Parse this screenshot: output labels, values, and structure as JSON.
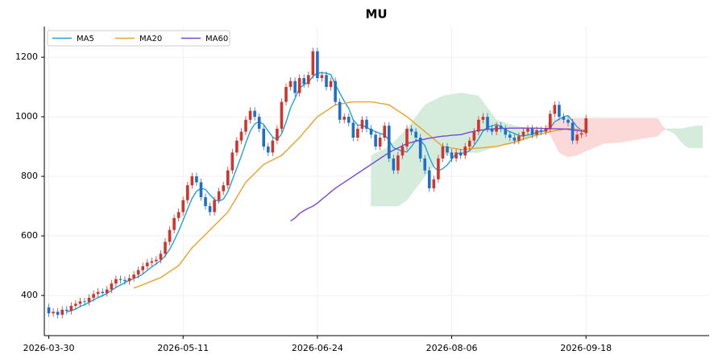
{
  "chart_data": {
    "type": "candlestick",
    "title": "MU",
    "xlim": [
      -1,
      147.5
    ],
    "xticks": [
      {
        "value": 0,
        "label": "2026-03-30"
      },
      {
        "value": 30,
        "label": "2026-05-11"
      },
      {
        "value": 60,
        "label": "2026-06-24"
      },
      {
        "value": 90,
        "label": "2026-08-06"
      },
      {
        "value": 120,
        "label": "2026-09-18"
      }
    ],
    "ylim": [
      265,
      1303
    ],
    "yticks": [
      400,
      600,
      800,
      1000,
      1200
    ],
    "grid": true,
    "legend": "upper left",
    "up_color": "#d0342c",
    "down_color": "#1f6fc8",
    "open": [
      360,
      340,
      345,
      335,
      352,
      348,
      365,
      372,
      380,
      378,
      392,
      405,
      412,
      408,
      420,
      440,
      455,
      452,
      448,
      458,
      470,
      485,
      498,
      510,
      515,
      520,
      540,
      580,
      620,
      660,
      680,
      720,
      770,
      800,
      780,
      730,
      700,
      680,
      720,
      750,
      770,
      820,
      880,
      920,
      950,
      990,
      1020,
      1000,
      960,
      900,
      880,
      920,
      960,
      1050,
      1100,
      1120,
      1080,
      1130,
      1110,
      1140,
      1220,
      1130,
      1140,
      1100,
      1120,
      1050,
      990,
      1000,
      980,
      930,
      960,
      990,
      960,
      940,
      900,
      930,
      970,
      860,
      820,
      870,
      900,
      960,
      950,
      930,
      860,
      820,
      760,
      790,
      860,
      900,
      880,
      860,
      880,
      870,
      900,
      920,
      950,
      990,
      1000,
      960,
      950,
      970,
      960,
      940,
      930,
      920,
      935,
      950,
      960,
      940,
      955,
      950,
      960,
      1010,
      1040,
      1000,
      990,
      980,
      920,
      940,
      945
    ],
    "high": [
      372,
      357,
      357,
      364,
      364,
      377,
      384,
      392,
      392,
      404,
      417,
      424,
      424,
      432,
      452,
      467,
      467,
      464,
      470,
      482,
      497,
      510,
      522,
      527,
      532,
      552,
      592,
      632,
      672,
      692,
      732,
      782,
      812,
      812,
      792,
      742,
      712,
      732,
      762,
      782,
      832,
      892,
      932,
      962,
      1002,
      1032,
      1032,
      1012,
      972,
      912,
      932,
      972,
      1062,
      1112,
      1132,
      1132,
      1142,
      1142,
      1152,
      1232,
      1232,
      1152,
      1152,
      1132,
      1132,
      1062,
      1012,
      1012,
      992,
      972,
      1002,
      1002,
      972,
      952,
      942,
      982,
      982,
      872,
      882,
      912,
      972,
      972,
      962,
      942,
      872,
      832,
      802,
      872,
      912,
      912,
      892,
      892,
      892,
      912,
      932,
      962,
      1002,
      1012,
      1012,
      972,
      982,
      982,
      972,
      952,
      942,
      947,
      962,
      972,
      972,
      967,
      967,
      972,
      1022,
      1052,
      1052,
      1012,
      1002,
      992,
      952,
      957,
      1007
    ],
    "low": [
      328,
      328,
      323,
      323,
      336,
      336,
      353,
      360,
      366,
      366,
      380,
      393,
      396,
      396,
      408,
      428,
      440,
      436,
      436,
      446,
      458,
      473,
      486,
      498,
      503,
      508,
      528,
      568,
      608,
      648,
      668,
      708,
      758,
      768,
      718,
      688,
      668,
      668,
      708,
      738,
      758,
      808,
      868,
      908,
      938,
      978,
      988,
      948,
      888,
      868,
      868,
      908,
      948,
      1038,
      1088,
      1068,
      1068,
      1098,
      1098,
      1128,
      1118,
      1118,
      1088,
      1088,
      1038,
      978,
      978,
      968,
      918,
      918,
      948,
      948,
      928,
      888,
      888,
      918,
      848,
      808,
      808,
      858,
      888,
      938,
      918,
      848,
      808,
      748,
      748,
      778,
      848,
      868,
      848,
      848,
      858,
      858,
      888,
      908,
      938,
      978,
      948,
      938,
      938,
      948,
      928,
      918,
      908,
      908,
      923,
      938,
      928,
      928,
      938,
      938,
      948,
      998,
      988,
      978,
      968,
      908,
      908,
      928,
      933
    ],
    "close": [
      340,
      345,
      335,
      352,
      348,
      365,
      372,
      380,
      378,
      392,
      405,
      412,
      408,
      420,
      440,
      455,
      452,
      448,
      458,
      470,
      485,
      498,
      510,
      515,
      520,
      540,
      580,
      620,
      660,
      680,
      720,
      770,
      800,
      780,
      730,
      700,
      680,
      720,
      750,
      770,
      820,
      880,
      920,
      950,
      990,
      1020,
      1000,
      960,
      900,
      880,
      920,
      960,
      1050,
      1100,
      1120,
      1080,
      1130,
      1110,
      1140,
      1220,
      1130,
      1140,
      1100,
      1120,
      1050,
      990,
      1000,
      980,
      930,
      960,
      990,
      960,
      940,
      900,
      930,
      970,
      860,
      820,
      870,
      900,
      960,
      950,
      930,
      860,
      820,
      760,
      790,
      860,
      900,
      880,
      860,
      880,
      870,
      900,
      920,
      950,
      990,
      1000,
      960,
      950,
      970,
      960,
      940,
      930,
      920,
      935,
      950,
      960,
      940,
      955,
      950,
      960,
      1010,
      1040,
      1000,
      990,
      980,
      920,
      940,
      945,
      995
    ],
    "series": [
      {
        "name": "MA5",
        "color": "#1fa3dc",
        "values": [
          null,
          null,
          null,
          null,
          344,
          349,
          354,
          363,
          369,
          377,
          385,
          393,
          399,
          407,
          417,
          427,
          435,
          443,
          451,
          457,
          463,
          472,
          484,
          496,
          506,
          517,
          533,
          555,
          584,
          616,
          652,
          690,
          726,
          750,
          760,
          756,
          738,
          722,
          716,
          724,
          748,
          788,
          828,
          868,
          912,
          952,
          976,
          984,
          974,
          952,
          932,
          924,
          942,
          982,
          1030,
          1062,
          1096,
          1108,
          1116,
          1136,
          1146,
          1148,
          1146,
          1142,
          1108,
          1080,
          1052,
          1028,
          990,
          972,
          972,
          964,
          956,
          950,
          944,
          940,
          920,
          896,
          890,
          884,
          882,
          900,
          922,
          920,
          904,
          864,
          832,
          818,
          826,
          838,
          858,
          876,
          878,
          878,
          886,
          904,
          926,
          952,
          964,
          970,
          974,
          968,
          956,
          950,
          944,
          937,
          935,
          939,
          941,
          948,
          951,
          953,
          963,
          983,
          992,
          1000,
          1004,
          986,
          966,
          955,
          956
        ]
      },
      {
        "name": "MA20",
        "color": "#e8a329",
        "values": [
          null,
          null,
          null,
          null,
          null,
          null,
          null,
          null,
          null,
          null,
          null,
          null,
          null,
          null,
          null,
          null,
          null,
          null,
          null,
          425,
          430,
          436,
          442,
          448,
          454,
          460,
          470,
          480,
          490,
          500,
          520,
          540,
          560,
          575,
          590,
          605,
          620,
          635,
          650,
          665,
          680,
          705,
          730,
          755,
          780,
          795,
          810,
          825,
          840,
          848,
          855,
          863,
          870,
          885,
          900,
          915,
          930,
          948,
          965,
          983,
          1000,
          1010,
          1020,
          1030,
          1040,
          1043,
          1045,
          1048,
          1050,
          1050,
          1050,
          1050,
          1050,
          1048,
          1045,
          1043,
          1040,
          1030,
          1020,
          1010,
          1000,
          988,
          975,
          963,
          950,
          938,
          925,
          913,
          900,
          898,
          895,
          893,
          890,
          891,
          893,
          894,
          895,
          896,
          898,
          899,
          900,
          904,
          908,
          911,
          915,
          920,
          925,
          930,
          935,
          939,
          943,
          946,
          950,
          953,
          955,
          958,
          960,
          959,
          958,
          956,
          955
        ]
      },
      {
        "name": "MA60",
        "color": "#7b45d8",
        "values": [
          null,
          null,
          null,
          null,
          null,
          null,
          null,
          null,
          null,
          null,
          null,
          null,
          null,
          null,
          null,
          null,
          null,
          null,
          null,
          null,
          null,
          null,
          null,
          null,
          null,
          null,
          null,
          null,
          null,
          null,
          null,
          null,
          null,
          null,
          null,
          null,
          null,
          null,
          null,
          null,
          null,
          null,
          null,
          null,
          null,
          null,
          null,
          null,
          null,
          null,
          null,
          null,
          null,
          null,
          650,
          660,
          675,
          685,
          693,
          700,
          710,
          723,
          735,
          748,
          760,
          770,
          780,
          790,
          800,
          810,
          820,
          830,
          840,
          850,
          860,
          870,
          880,
          888,
          895,
          903,
          910,
          914,
          918,
          921,
          925,
          928,
          930,
          933,
          935,
          936,
          938,
          939,
          940,
          944,
          948,
          951,
          955,
          956,
          958,
          959,
          960,
          961,
          961,
          962,
          962,
          962,
          962,
          962,
          962,
          962,
          961,
          961,
          960,
          960,
          959,
          959,
          958,
          956,
          954,
          952,
          950
        ]
      }
    ],
    "cloud": {
      "up_color": "#d5ecdc",
      "down_color": "#fcd9d9",
      "span_a": [
        null,
        null,
        null,
        null,
        null,
        null,
        null,
        null,
        null,
        null,
        null,
        null,
        null,
        null,
        null,
        null,
        null,
        null,
        null,
        null,
        null,
        null,
        null,
        null,
        null,
        null,
        null,
        null,
        null,
        null,
        null,
        null,
        null,
        null,
        null,
        null,
        null,
        null,
        null,
        null,
        null,
        null,
        null,
        null,
        null,
        null,
        null,
        null,
        null,
        null,
        null,
        null,
        null,
        null,
        null,
        null,
        null,
        null,
        null,
        null,
        null,
        null,
        null,
        null,
        null,
        null,
        null,
        null,
        null,
        null,
        null,
        null,
        870,
        878,
        885,
        893,
        900,
        915,
        930,
        945,
        960,
        980,
        1000,
        1020,
        1040,
        1048,
        1055,
        1063,
        1070,
        1073,
        1075,
        1078,
        1080,
        1078,
        1075,
        1073,
        1070,
        1050,
        1030,
        1010,
        990,
        985,
        980,
        975,
        970,
        968,
        965,
        963,
        960,
        958,
        955,
        950,
        940,
        910,
        880,
        872,
        865,
        868,
        870,
        878,
        885,
        891,
        898,
        904,
        910,
        911,
        913,
        914,
        915,
        918,
        920,
        923,
        925,
        928,
        930,
        933,
        935,
        950,
        960,
        960,
        960,
        960,
        962,
        965,
        968,
        970,
        970
      ],
      "span_b": [
        null,
        null,
        null,
        null,
        null,
        null,
        null,
        null,
        null,
        null,
        null,
        null,
        null,
        null,
        null,
        null,
        null,
        null,
        null,
        null,
        null,
        null,
        null,
        null,
        null,
        null,
        null,
        null,
        null,
        null,
        null,
        null,
        null,
        null,
        null,
        null,
        null,
        null,
        null,
        null,
        null,
        null,
        null,
        null,
        null,
        null,
        null,
        null,
        null,
        null,
        null,
        null,
        null,
        null,
        null,
        null,
        null,
        null,
        null,
        null,
        null,
        null,
        null,
        null,
        null,
        null,
        null,
        null,
        null,
        null,
        null,
        null,
        700,
        700,
        700,
        700,
        700,
        700,
        700,
        710,
        720,
        740,
        760,
        780,
        800,
        818,
        835,
        853,
        870,
        873,
        875,
        878,
        880,
        880,
        880,
        880,
        880,
        885,
        890,
        895,
        900,
        903,
        905,
        908,
        910,
        915,
        920,
        925,
        930,
        935,
        940,
        960,
        995,
        995,
        995,
        995,
        995,
        995,
        995,
        995,
        995,
        995,
        995,
        995,
        995,
        995,
        995,
        995,
        995,
        995,
        995,
        995,
        995,
        995,
        995,
        995,
        995,
        970,
        955,
        950,
        940,
        920,
        905,
        895,
        895,
        895,
        895
      ]
    }
  }
}
